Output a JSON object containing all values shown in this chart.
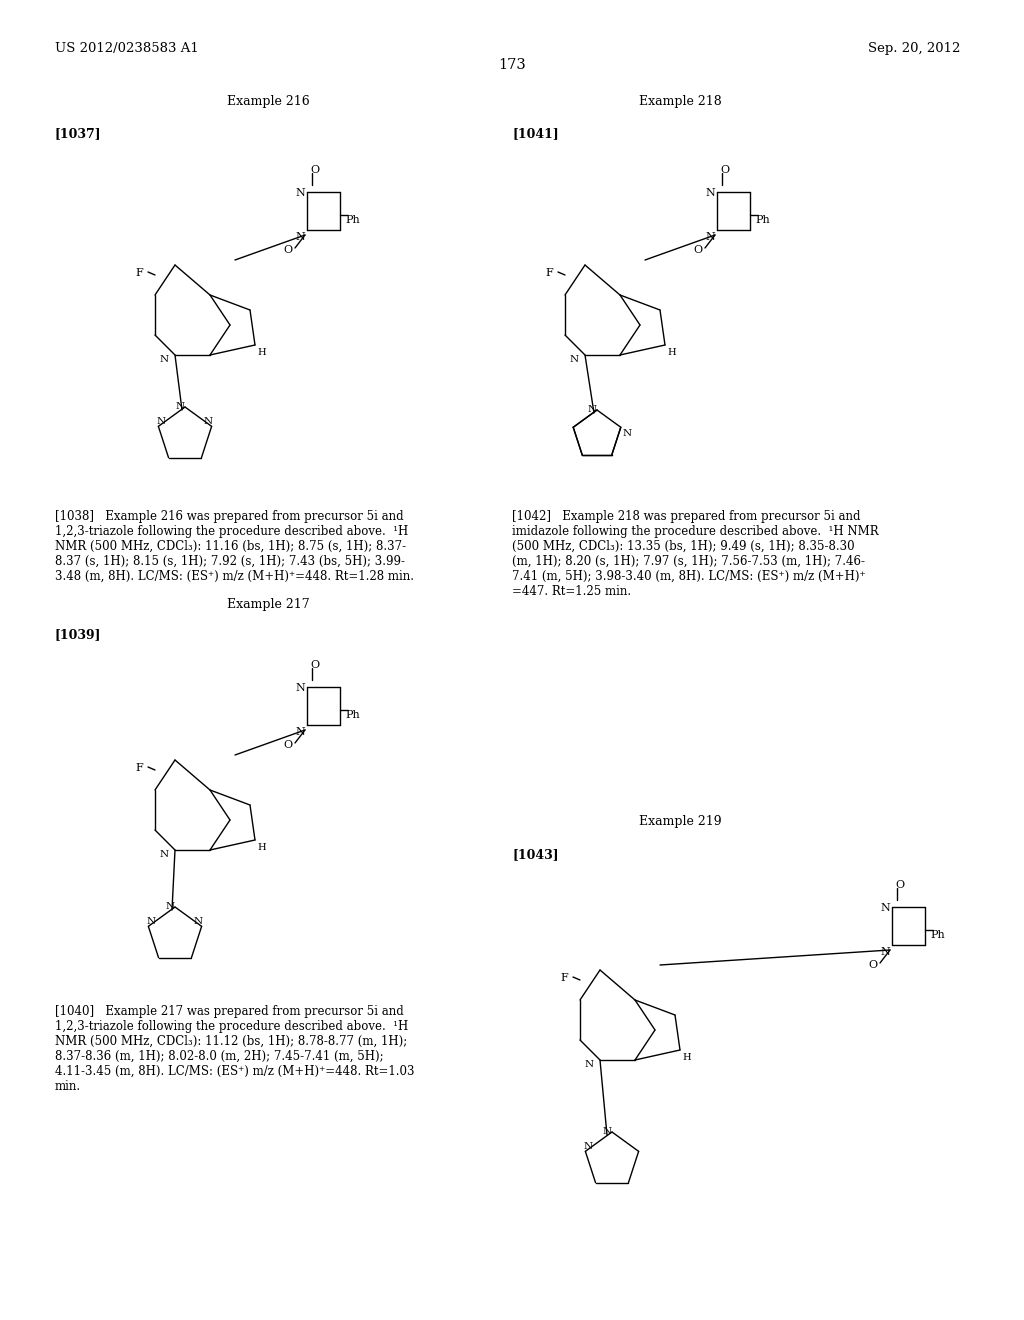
{
  "bg_color": "#ffffff",
  "page_width": 10.24,
  "page_height": 13.2,
  "header_left": "US 2012/0238583 A1",
  "header_right": "Sep. 20, 2012",
  "page_number": "173",
  "example216_title": "Example 216",
  "example217_title": "Example 217",
  "example218_title": "Example 218",
  "example219_title": "Example 219",
  "ref1037": "[1037]",
  "ref1038": "[1038]",
  "ref1039": "[1039]",
  "ref1040": "[1040]",
  "ref1041": "[1041]",
  "ref1042": "[1042]",
  "ref1043": "[1043]",
  "text1038": "[1038] Example 216 was prepared from precursor 5i and 1,2,3-triazole following the procedure described above. ¹H NMR (500 MHz, CDCl₃): 11.16 (bs, 1H); 8.75 (s, 1H); 8.37-8.37 (s, 1H); 8.15 (s, 1H); 7.92 (s, 1H); 7.43 (bs, 5H); 3.99-3.48 (m, 8H). LC/MS: (ES⁺) m/z (M+H)⁺=448. Rt=1.28 min.",
  "text1040": "[1040] Example 217 was prepared from precursor 5i and 1,2,3-triazole following the procedure described above. ¹H NMR (500 MHz, CDCl₃): 11.12 (bs, 1H); 8.78-8.77 (m, 1H); 8.37-8.36 (m, 1H); 8.02-8.0 (m, 2H); 7.45-7.41 (m, 5H); 4.11-3.45 (m, 8H). LC/MS: (ES⁺) m/z (M+H)⁺=448. Rt=1.03 min.",
  "text1042": "[1042] Example 218 was prepared from precursor 5i and imidazole following the procedure described above. ¹H NMR (500 MHz, CDCl₃): 13.35 (bs, 1H); 9.49 (s, 1H); 8.35-8.30 (m, 1H); 8.20 (s, 1H); 7.97 (s, 1H); 7.56-7.53 (m, 1H); 7.46-7.41 (m, 5H); 3.98-3.40 (m, 8H). LC/MS: (ES⁺) m/z (M+H)⁺=447. Rt=1.25 min."
}
